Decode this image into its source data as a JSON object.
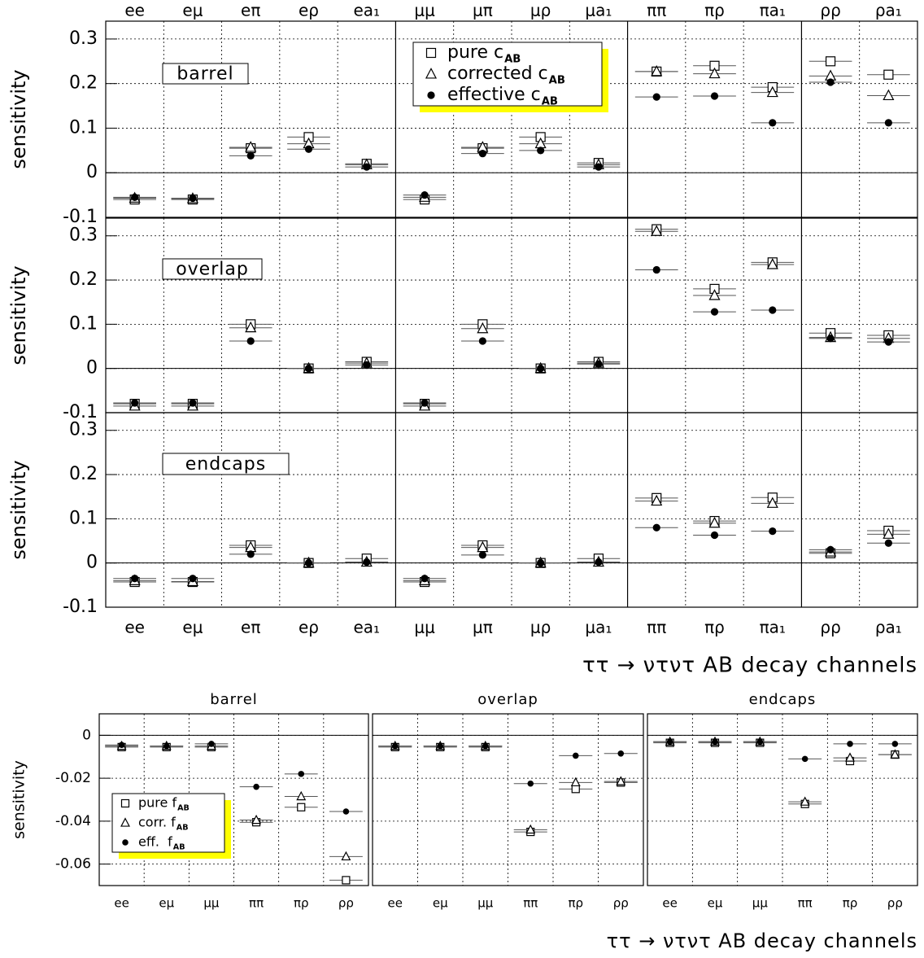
{
  "chart_data": [
    {
      "type": "errorpoint",
      "title": "barrel",
      "ylabel": "sensitivity",
      "categories": [
        "ee",
        "eμ",
        "eπ",
        "eρ",
        "ea₁",
        "μμ",
        "μπ",
        "μρ",
        "μa₁",
        "ππ",
        "πρ",
        "πa₁",
        "ρρ",
        "ρa₁"
      ],
      "ylim": [
        -0.1,
        0.34
      ],
      "yticks": [
        -0.1,
        0,
        0.1,
        0.2,
        0.3
      ],
      "grid": true,
      "series": [
        {
          "name": "pure c",
          "name_sub": "AB",
          "marker": "square",
          "values": [
            -0.06,
            -0.06,
            0.055,
            0.08,
            0.02,
            -0.06,
            0.055,
            0.08,
            0.022,
            0.227,
            0.24,
            0.192,
            0.25,
            0.22
          ]
        },
        {
          "name": "corrected c",
          "name_sub": "AB",
          "marker": "triangle",
          "values": [
            -0.057,
            -0.058,
            0.057,
            0.065,
            0.018,
            -0.055,
            0.057,
            0.065,
            0.018,
            0.227,
            0.222,
            0.18,
            0.217,
            0.173
          ]
        },
        {
          "name": "effective c",
          "name_sub": "AB",
          "marker": "circle",
          "values": [
            -0.055,
            -0.057,
            0.038,
            0.053,
            0.013,
            -0.05,
            0.043,
            0.05,
            0.013,
            0.17,
            0.172,
            0.112,
            0.203,
            0.112
          ]
        }
      ]
    },
    {
      "type": "errorpoint",
      "title": "overlap",
      "ylabel": "sensitivity",
      "ylim": [
        -0.1,
        0.34
      ],
      "yticks": [
        -0.1,
        0,
        0.1,
        0.2,
        0.3
      ],
      "grid": true,
      "series": [
        {
          "marker": "square",
          "values": [
            -0.08,
            -0.08,
            0.1,
            0,
            0.015,
            -0.08,
            0.1,
            0,
            0.015,
            0.315,
            0.18,
            0.24,
            0.08,
            0.075
          ]
        },
        {
          "marker": "triangle",
          "values": [
            -0.085,
            -0.085,
            0.092,
            0,
            0.012,
            -0.085,
            0.09,
            0,
            0.012,
            0.31,
            0.165,
            0.235,
            0.07,
            0.068
          ]
        },
        {
          "marker": "circle",
          "values": [
            -0.078,
            -0.078,
            0.062,
            0,
            0.008,
            -0.078,
            0.062,
            0,
            0.01,
            0.223,
            0.128,
            0.132,
            0.068,
            0.06
          ]
        }
      ]
    },
    {
      "type": "errorpoint",
      "title": "endcaps",
      "ylabel": "sensitivity",
      "xlabel": "ττ → ντντ AB  decay channels",
      "categories": [
        "ee",
        "eμ",
        "eπ",
        "eρ",
        "ea₁",
        "μμ",
        "μπ",
        "μρ",
        "μa₁",
        "ππ",
        "πρ",
        "πa₁",
        "ρρ",
        "ρa₁"
      ],
      "ylim": [
        -0.1,
        0.34
      ],
      "yticks": [
        -0.1,
        0,
        0.1,
        0.2,
        0.3
      ],
      "grid": true,
      "series": [
        {
          "marker": "square",
          "values": [
            -0.043,
            -0.043,
            0.04,
            0,
            0.01,
            -0.043,
            0.04,
            0,
            0.01,
            0.147,
            0.095,
            0.148,
            0.022,
            0.073
          ]
        },
        {
          "marker": "triangle",
          "values": [
            -0.04,
            -0.042,
            0.035,
            0,
            0.002,
            -0.04,
            0.035,
            0,
            0.002,
            0.14,
            0.09,
            0.135,
            0.025,
            0.065
          ]
        },
        {
          "marker": "circle",
          "values": [
            -0.035,
            -0.035,
            0.02,
            0,
            0.002,
            -0.035,
            0.018,
            0,
            0.002,
            0.08,
            0.063,
            0.072,
            0.03,
            0.045
          ]
        }
      ]
    },
    {
      "type": "errorpoint",
      "title": "barrel",
      "ylabel": "sensitivity",
      "categories": [
        "ee",
        "eμ",
        "μμ",
        "ππ",
        "πρ",
        "ρρ"
      ],
      "ylim": [
        -0.07,
        0.01
      ],
      "yticks": [
        -0.06,
        -0.04,
        -0.02,
        0
      ],
      "grid": true,
      "series": [
        {
          "name": "pure f",
          "name_sub": "AB",
          "marker": "square",
          "values": [
            -0.0055,
            -0.0055,
            -0.0055,
            -0.0405,
            -0.0335,
            -0.0675
          ]
        },
        {
          "name": "corr. f",
          "name_sub": "AB",
          "marker": "triangle",
          "values": [
            -0.005,
            -0.005,
            -0.005,
            -0.0395,
            -0.0285,
            -0.0565
          ]
        },
        {
          "name": "eff.  f",
          "name_sub": "AB",
          "marker": "circle",
          "values": [
            -0.0045,
            -0.005,
            -0.004,
            -0.024,
            -0.018,
            -0.0355
          ]
        }
      ]
    },
    {
      "type": "errorpoint",
      "title": "overlap",
      "categories": [
        "ee",
        "eμ",
        "μμ",
        "ππ",
        "πρ",
        "ρρ"
      ],
      "ylim": [
        -0.07,
        0.01
      ],
      "grid": true,
      "series": [
        {
          "marker": "square",
          "values": [
            -0.0055,
            -0.0055,
            -0.0055,
            -0.045,
            -0.025,
            -0.022
          ]
        },
        {
          "marker": "triangle",
          "values": [
            -0.005,
            -0.005,
            -0.005,
            -0.044,
            -0.022,
            -0.0215
          ]
        },
        {
          "marker": "circle",
          "values": [
            -0.005,
            -0.005,
            -0.005,
            -0.0225,
            -0.0095,
            -0.0085
          ]
        }
      ]
    },
    {
      "type": "errorpoint",
      "title": "endcaps",
      "xlabel": "ττ → ντντ AB  decay channels",
      "categories": [
        "ee",
        "eμ",
        "μμ",
        "ππ",
        "πρ",
        "ρρ"
      ],
      "ylim": [
        -0.07,
        0.01
      ],
      "grid": true,
      "series": [
        {
          "marker": "square",
          "values": [
            -0.0035,
            -0.0035,
            -0.0035,
            -0.032,
            -0.012,
            -0.009
          ]
        },
        {
          "marker": "triangle",
          "values": [
            -0.003,
            -0.003,
            -0.003,
            -0.031,
            -0.0105,
            -0.009
          ]
        },
        {
          "marker": "circle",
          "values": [
            -0.003,
            -0.003,
            -0.003,
            -0.011,
            -0.004,
            -0.004
          ]
        }
      ]
    }
  ]
}
